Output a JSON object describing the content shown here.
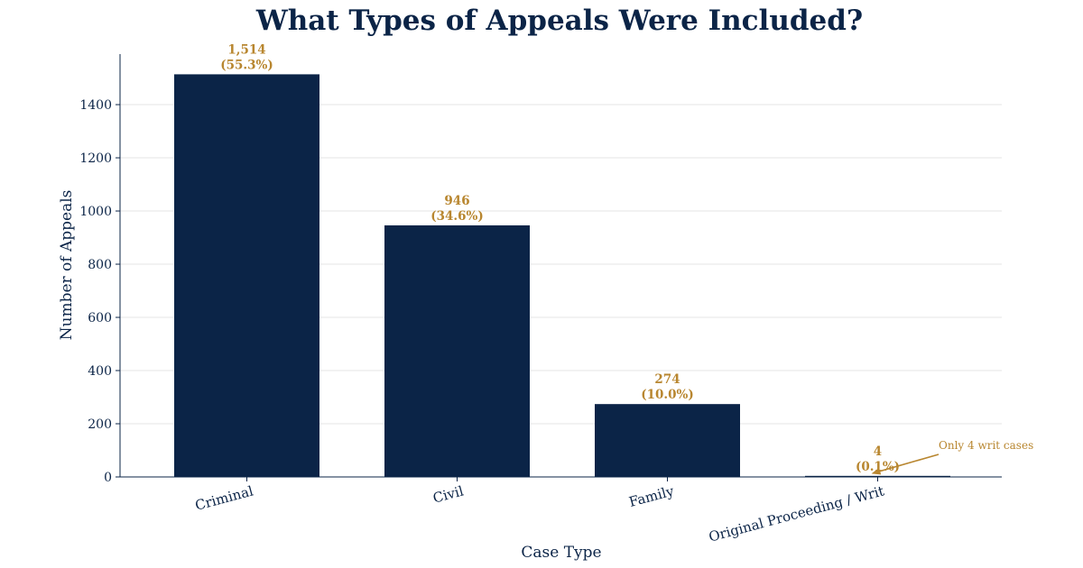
{
  "chart_data": {
    "type": "bar",
    "title": "What Types of Appeals Were Included?",
    "xlabel": "Case Type",
    "ylabel": "Number of Appeals",
    "categories": [
      "Criminal",
      "Civil",
      "Family",
      "Original Proceeding / Writ"
    ],
    "values": [
      1514,
      946,
      274,
      4
    ],
    "value_labels": [
      "1,514",
      "946",
      "274",
      "4"
    ],
    "percent_labels": [
      "(55.3%)",
      "(34.6%)",
      "(10.0%)",
      "(0.1%)"
    ],
    "yticks": [
      0,
      200,
      400,
      600,
      800,
      1000,
      1200,
      1400
    ],
    "ylim": [
      0,
      1590
    ],
    "grid": "horizontal",
    "bar_color": "#0b2447",
    "label_color": "#b8862f",
    "annotation": {
      "text": "Only 4 writ cases",
      "category": "Original Proceeding / Writ",
      "value": 4
    }
  }
}
